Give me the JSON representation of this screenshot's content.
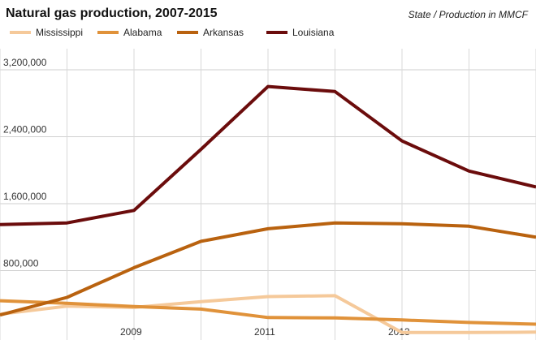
{
  "chart_data": {
    "type": "line",
    "title": "Natural gas production, 2007-2015",
    "subtitle": "State / Production in MMCF",
    "x": [
      2007,
      2008,
      2009,
      2010,
      2011,
      2012,
      2013,
      2014,
      2015
    ],
    "x_tick_labels": [
      "2009",
      "2011",
      "2013"
    ],
    "y_tick_labels": [
      "800,000",
      "1,600,000",
      "2,400,000",
      "3,200,000"
    ],
    "ylim": [
      0,
      3400000
    ],
    "grid": true,
    "legend": "top",
    "series": [
      {
        "name": "Mississippi",
        "color": "#f5c99a",
        "values": [
          280000,
          375000,
          360000,
          430000,
          490000,
          500000,
          60000,
          60000,
          65000
        ]
      },
      {
        "name": "Alabama",
        "color": "#e0923a",
        "values": [
          440000,
          410000,
          370000,
          340000,
          240000,
          235000,
          210000,
          180000,
          160000
        ]
      },
      {
        "name": "Arkansas",
        "color": "#b9620f",
        "values": [
          270000,
          480000,
          835000,
          1150000,
          1300000,
          1370000,
          1360000,
          1330000,
          1200000
        ]
      },
      {
        "name": "Louisiana",
        "color": "#6b0c0c",
        "values": [
          1350000,
          1370000,
          1520000,
          2250000,
          3000000,
          2940000,
          2350000,
          1990000,
          1800000
        ]
      }
    ]
  }
}
